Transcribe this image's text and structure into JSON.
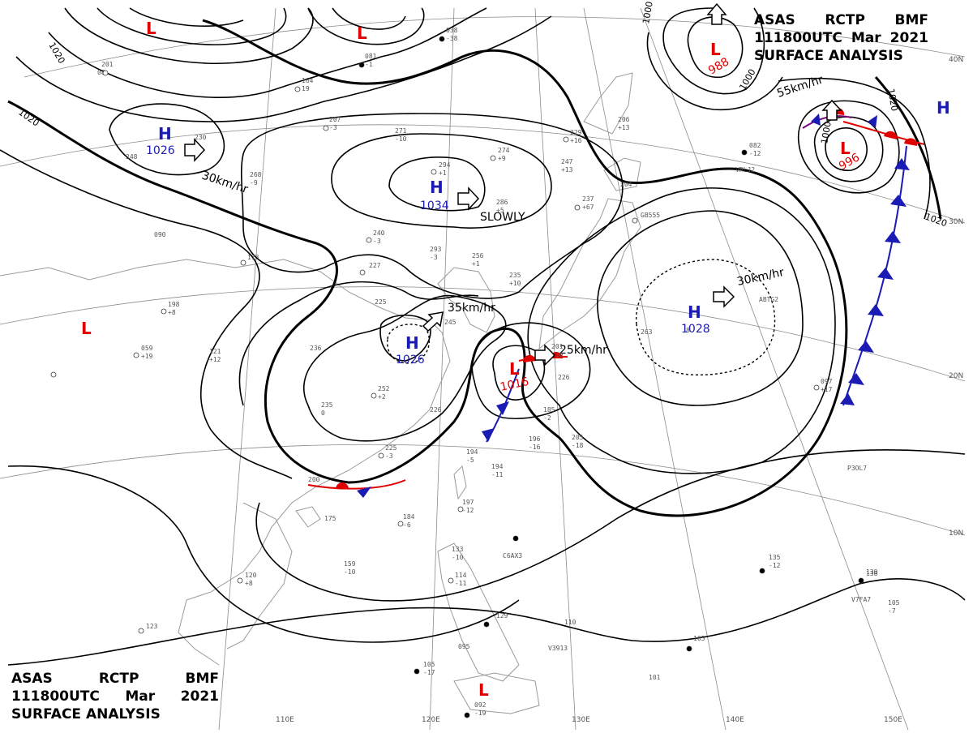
{
  "header": {
    "agency": "ASAS",
    "station": "RCTP",
    "office": "BMF",
    "time": "111800UTC",
    "month": "Mar",
    "year": "2021",
    "title": "SURFACE ANALYSIS"
  },
  "colors": {
    "high": "#1a1ab4",
    "low": "#e00000",
    "line": "#000000",
    "coast": "#9a9a9a",
    "grid": "#8a8a8a"
  },
  "pressure_centers": [
    {
      "type": "H",
      "value": "1026"
    },
    {
      "type": "H",
      "value": "1034"
    },
    {
      "type": "H",
      "value": "1026"
    },
    {
      "type": "H",
      "value": "1028"
    },
    {
      "type": "H",
      "value": ""
    },
    {
      "type": "L",
      "value": ""
    },
    {
      "type": "L",
      "value": ""
    },
    {
      "type": "L",
      "value": "988"
    },
    {
      "type": "L",
      "value": "996"
    },
    {
      "type": "L",
      "value": ""
    },
    {
      "type": "L",
      "value": "1016"
    },
    {
      "type": "L",
      "value": ""
    }
  ],
  "motion_labels": [
    "30km/hr",
    "SLOWLY",
    "35km/hr",
    "25km/hr",
    "30km/hr",
    "55km/hr"
  ],
  "isobar_labels": [
    "1020",
    "1020",
    "1000",
    "1000",
    "1000",
    "1020",
    "1020"
  ],
  "grid_labels": {
    "longitudes": [
      "110E",
      "120E",
      "130E",
      "140E",
      "150E"
    ],
    "latitudes": [
      "40N",
      "30N",
      "20N",
      "10N"
    ]
  },
  "station_plots": [
    "201",
    "08",
    "164",
    "19",
    "038",
    "-38",
    "081",
    "-1",
    "207",
    "-3",
    "248",
    "230",
    "268",
    "-9",
    "271",
    "-10",
    "294",
    "+1",
    "274",
    "+9",
    "229",
    "+16",
    "206",
    "+13",
    "247",
    "+13",
    "286",
    "+5",
    "237",
    "+67",
    "204",
    "082",
    "-12",
    "090",
    "173",
    "240",
    "-3",
    "227",
    "293",
    "-3",
    "256",
    "+1",
    "235",
    "+10",
    "225",
    "198",
    "+8",
    "059",
    "+19",
    "121",
    "+12",
    "236",
    "245",
    "201",
    "-10",
    "226",
    "263",
    "252",
    "+2",
    "235",
    "0",
    "226",
    "185",
    "-2",
    "205",
    "-18",
    "196",
    "-16",
    "225",
    "-3",
    "194",
    "-5",
    "194",
    "-11",
    "197",
    "-12",
    "200",
    "175",
    "184",
    "-6",
    "159",
    "-10",
    "120",
    "+8",
    "123",
    "133",
    "-10",
    "114",
    "-11",
    "129",
    "110",
    "095",
    "105",
    "-17",
    "092",
    "-19",
    "101",
    "105",
    "135",
    "-12",
    "130",
    "105",
    "-7",
    "097",
    "+17",
    "GB555",
    "ABTG2",
    "C6AX3",
    "V3913",
    "V7FA7",
    "VRLJ2",
    "P3OL7",
    "8",
    "130"
  ]
}
